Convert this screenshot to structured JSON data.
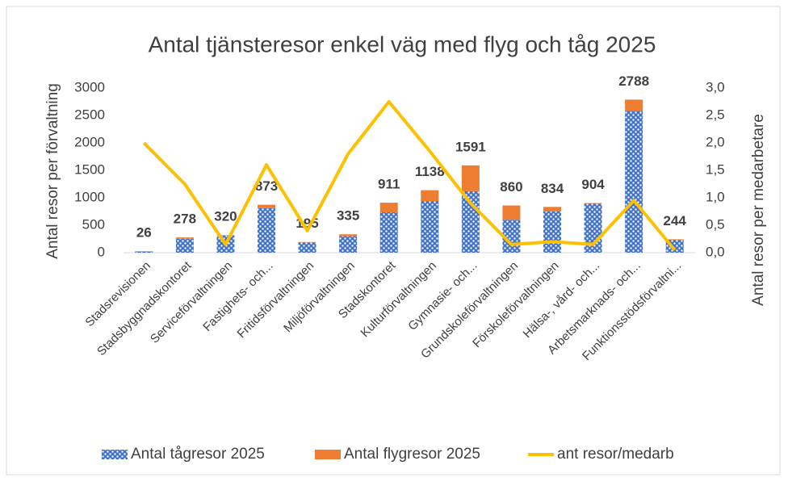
{
  "chart_data": {
    "type": "combo",
    "title": "Antal tjänsteresor enkel väg med flyg och tåg 2025",
    "ylabel": "Antal resor per förvaltning",
    "y2label": "Antal resor per medarbetare",
    "categories": [
      "Stadsrevisionen",
      "Stadsbyggnadskontoret",
      "Serviceförvaltningen",
      "Fastighets- och...",
      "Fritidsförvaltningen",
      "Miljöförvaltningen",
      "Stadskontoret",
      "Kulturförvaltningen",
      "Gymnasie- och...",
      "Grundskoleförvaltningen",
      "Förskoleförvaltningen",
      "Hälsa-, vård- och...",
      "Arbetsmarknads- och...",
      "Funktionsstödsförvaltni..."
    ],
    "series": [
      {
        "name": "Antal tågresor 2025",
        "type": "bar",
        "color": "#4472c4",
        "values": [
          20,
          255,
          310,
          813,
          185,
          300,
          735,
          940,
          1120,
          600,
          750,
          890,
          2580,
          234
        ]
      },
      {
        "name": "Antal flygresor 2025",
        "type": "bar",
        "color": "#ed7d31",
        "values": [
          6,
          23,
          10,
          60,
          10,
          35,
          176,
          198,
          471,
          260,
          84,
          14,
          208,
          10
        ]
      },
      {
        "name": "ant resor/medarb",
        "type": "line",
        "axis": "y2",
        "color": "#ffc000",
        "values": [
          2.0,
          1.25,
          0.15,
          1.6,
          0.4,
          1.8,
          2.75,
          1.85,
          0.9,
          0.15,
          0.2,
          0.15,
          0.95,
          0.05
        ]
      }
    ],
    "totals": [
      26,
      278,
      320,
      873,
      195,
      335,
      911,
      1138,
      1591,
      860,
      834,
      904,
      2788,
      244
    ],
    "ylim": [
      0,
      3000
    ],
    "yticks": [
      0,
      500,
      1000,
      1500,
      2000,
      2500,
      3000
    ],
    "y2lim": [
      0,
      3
    ],
    "y2ticks": [
      {
        "value": 0,
        "label": "0,0"
      },
      {
        "value": 0.5,
        "label": "0,5"
      },
      {
        "value": 1,
        "label": "1,0"
      },
      {
        "value": 1.5,
        "label": "1,5"
      },
      {
        "value": 2,
        "label": "2,0"
      },
      {
        "value": 2.5,
        "label": "2,5"
      },
      {
        "value": 3,
        "label": "3,0"
      }
    ],
    "legend": "bottom"
  }
}
